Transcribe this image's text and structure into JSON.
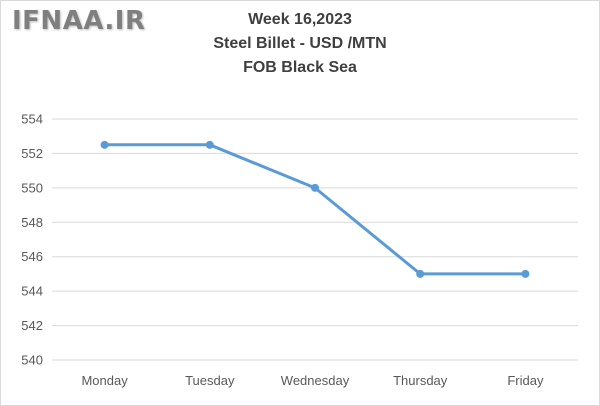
{
  "watermark": "IFNAA.IR",
  "colors": {
    "line": "#5b9bd5",
    "grid": "#d9d9d9",
    "text": "#595959",
    "title": "#3f3f3f"
  },
  "chart_data": {
    "type": "line",
    "title": [
      "Week 16,2023",
      "Steel Billet - USD /MTN",
      "FOB Black Sea"
    ],
    "categories": [
      "Monday",
      "Tuesday",
      "Wednesday",
      "Thursday",
      "Friday"
    ],
    "series": [
      {
        "values": [
          552.5,
          552.5,
          550,
          545,
          545
        ]
      }
    ],
    "ylim": [
      540,
      554
    ],
    "yticks": [
      540,
      542,
      544,
      546,
      548,
      550,
      552,
      554
    ],
    "grid": true,
    "legend": "none"
  }
}
